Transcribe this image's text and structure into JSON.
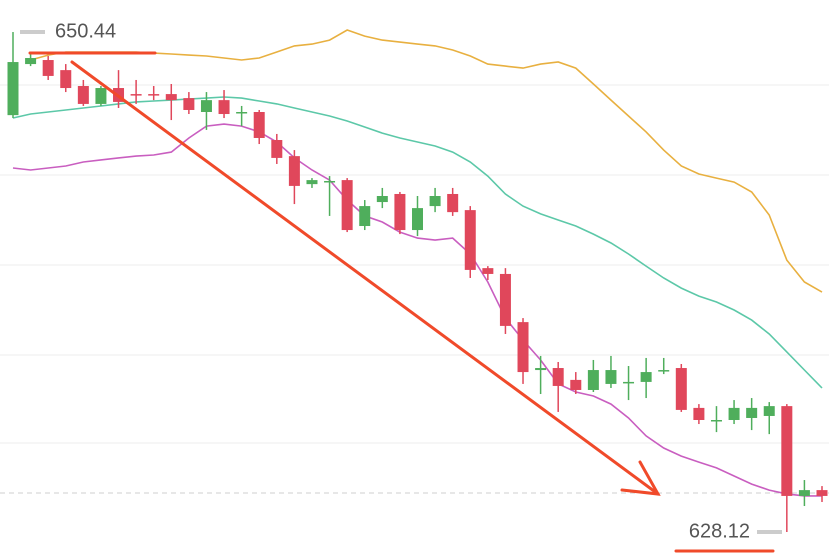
{
  "chart_data": {
    "type": "candlestick",
    "open": [
      646.73,
      649.01,
      649.19,
      648.74,
      648.03,
      647.23,
      647.94,
      647.67,
      647.67,
      647.67,
      647.49,
      646.87,
      647.4,
      646.87,
      646.87,
      645.62,
      644.9,
      643.65,
      643.79,
      643.83,
      641.78,
      642.85,
      643.21,
      641.6,
      642.67,
      643.21,
      642.49,
      639.9,
      639.64,
      637.49,
      635.35,
      635.44,
      634.91,
      634.46,
      634.73,
      634.82,
      634.82,
      635.35,
      635.44,
      633.66,
      633.12,
      633.12,
      633.21,
      633.3,
      633.74,
      629.73,
      629.99
    ],
    "high": [
      650.44,
      649.55,
      649.37,
      649.01,
      648.3,
      648.03,
      648.74,
      648.3,
      648.03,
      648.12,
      647.76,
      647.76,
      647.85,
      647.14,
      646.96,
      645.89,
      645.17,
      643.92,
      644.01,
      643.92,
      642.94,
      643.48,
      643.3,
      643.12,
      643.48,
      643.48,
      642.67,
      639.99,
      639.9,
      637.67,
      635.98,
      635.71,
      635.26,
      635.8,
      635.98,
      635.53,
      635.89,
      635.89,
      635.62,
      633.83,
      633.74,
      634.01,
      634.1,
      633.92,
      633.83,
      630.44,
      630.17
    ],
    "low": [
      646.6,
      648.92,
      648.3,
      647.76,
      647.14,
      647.14,
      647.05,
      647.23,
      647.4,
      646.51,
      646.78,
      646.07,
      646.6,
      646.24,
      645.44,
      644.55,
      642.76,
      643.48,
      642.23,
      641.51,
      641.6,
      642.58,
      641.42,
      641.33,
      642.4,
      642.23,
      639.46,
      639.37,
      636.96,
      634.73,
      634.28,
      633.48,
      634.28,
      634.37,
      634.55,
      634.01,
      634.1,
      635.17,
      633.48,
      632.94,
      632.58,
      632.94,
      632.67,
      632.49,
      628.12,
      629.28,
      629.46
    ],
    "close": [
      649.1,
      649.28,
      648.48,
      647.94,
      647.23,
      647.94,
      647.32,
      647.63,
      647.63,
      647.4,
      646.96,
      647.4,
      646.78,
      646.87,
      645.71,
      644.82,
      643.57,
      643.83,
      643.79,
      641.6,
      642.67,
      643.12,
      641.6,
      642.58,
      643.12,
      642.4,
      639.82,
      639.64,
      637.32,
      635.26,
      635.44,
      634.64,
      634.46,
      635.35,
      635.35,
      634.82,
      635.26,
      635.35,
      633.57,
      633.12,
      633.12,
      633.66,
      633.66,
      633.74,
      629.73,
      629.99,
      629.73
    ],
    "up_color": "#4fae5c",
    "down_color": "#e0475b",
    "lines": [
      {
        "color": "#e8b040",
        "values": [
          null,
          649.19,
          649.41,
          649.55,
          649.55,
          649.55,
          649.55,
          649.55,
          649.5,
          649.46,
          649.41,
          649.37,
          649.28,
          649.19,
          649.28,
          649.55,
          649.82,
          649.9,
          650.08,
          650.53,
          650.26,
          650.08,
          649.99,
          649.9,
          649.82,
          649.64,
          649.37,
          649.01,
          648.92,
          648.83,
          649.01,
          649.1,
          648.83,
          648.12,
          647.4,
          646.69,
          645.98,
          645.17,
          644.46,
          644.1,
          643.92,
          643.74,
          643.3,
          642.27,
          640.26,
          639.28,
          638.83
        ]
      },
      {
        "color": "#5cc8a8",
        "values": [
          646.6,
          646.78,
          646.87,
          646.96,
          647.05,
          647.14,
          647.23,
          647.32,
          647.36,
          647.4,
          647.45,
          647.49,
          647.54,
          647.49,
          647.36,
          647.23,
          647.05,
          646.87,
          646.69,
          646.47,
          646.2,
          645.93,
          645.71,
          645.53,
          645.35,
          645.08,
          644.64,
          644.01,
          643.21,
          642.67,
          642.32,
          642.05,
          641.78,
          641.42,
          641.02,
          640.53,
          639.99,
          639.46,
          639.01,
          638.65,
          638.39,
          638.03,
          637.58,
          636.96,
          636.16,
          635.35,
          634.55
        ]
      },
      {
        "color": "#c95ec0",
        "values": [
          644.37,
          644.28,
          644.37,
          644.46,
          644.64,
          644.73,
          644.82,
          644.9,
          644.95,
          645.08,
          645.71,
          646.24,
          646.33,
          646.24,
          645.98,
          645.53,
          644.82,
          644.28,
          643.83,
          642.94,
          642.23,
          641.96,
          641.51,
          641.24,
          641.15,
          641.24,
          640.53,
          639.28,
          637.67,
          636.69,
          635.8,
          634.73,
          634.37,
          634.19,
          633.83,
          633.21,
          632.41,
          631.87,
          631.51,
          631.24,
          630.98,
          630.62,
          630.26,
          629.99,
          629.82,
          629.73,
          629.73
        ]
      }
    ],
    "reference_line": 629.86,
    "high_label": 650.44,
    "low_label": 628.12,
    "ylim": [
      626.87,
      651.87
    ]
  }
}
